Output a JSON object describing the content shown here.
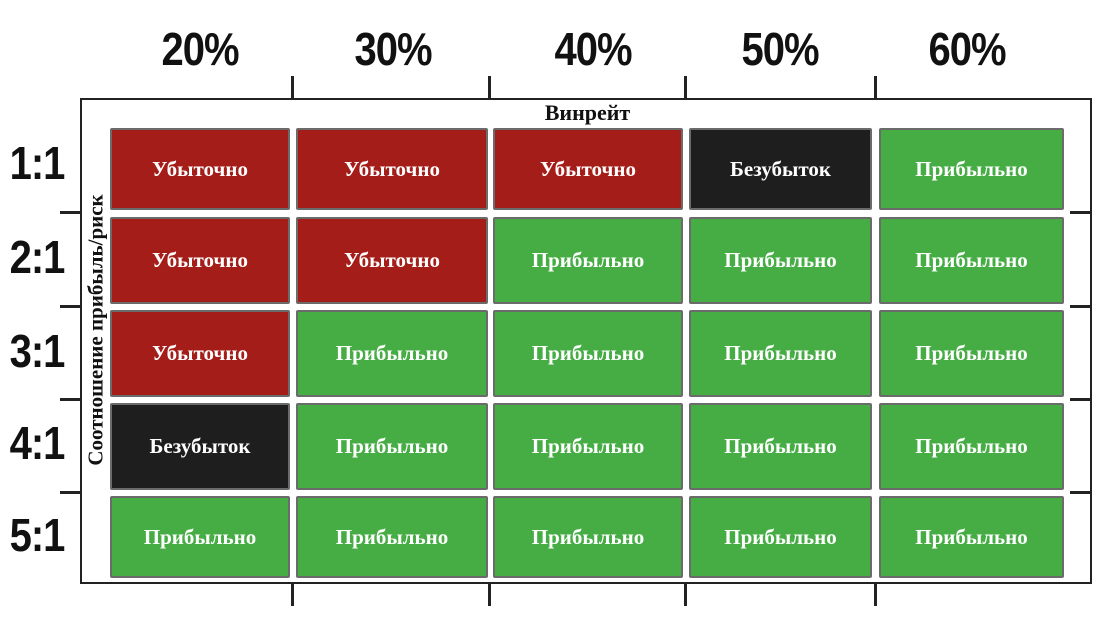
{
  "axes": {
    "x_title": "Винрейт",
    "y_title": "Соотношение прибыль/риск"
  },
  "columns": [
    "20%",
    "30%",
    "40%",
    "50%",
    "60%"
  ],
  "rows": [
    "1:1",
    "2:1",
    "3:1",
    "4:1",
    "5:1"
  ],
  "colors": {
    "loss": "#a51d18",
    "breakeven": "#1e1e1e",
    "profit": "#46ad45"
  },
  "grid": [
    [
      "Убыточно",
      "Убыточно",
      "Убыточно",
      "Безубыток",
      "Прибыльно"
    ],
    [
      "Убыточно",
      "Убыточно",
      "Прибыльно",
      "Прибыльно",
      "Прибыльно"
    ],
    [
      "Убыточно",
      "Прибыльно",
      "Прибыльно",
      "Прибыльно",
      "Прибыльно"
    ],
    [
      "Безубыток",
      "Прибыльно",
      "Прибыльно",
      "Прибыльно",
      "Прибыльно"
    ],
    [
      "Прибыльно",
      "Прибыльно",
      "Прибыльно",
      "Прибыльно",
      "Прибыльно"
    ]
  ]
}
